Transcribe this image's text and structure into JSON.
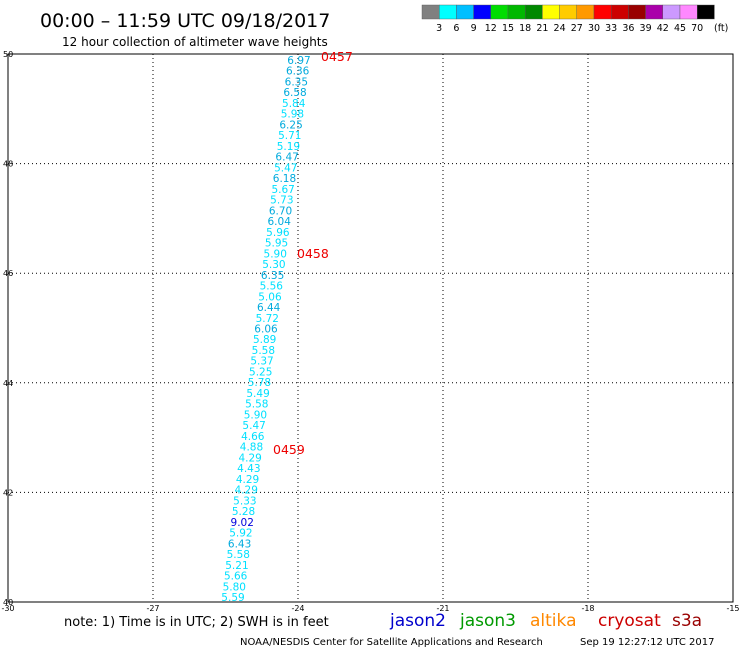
{
  "header": {
    "title": "00:00 – 11:59 UTC 09/18/2017",
    "subtitle": "12 hour collection of altimeter wave heights"
  },
  "legend": {
    "colors": [
      "#808080",
      "#00ffff",
      "#00bfff",
      "#0000ff",
      "#00dd00",
      "#00b800",
      "#008800",
      "#ffff00",
      "#ffcc00",
      "#ff9900",
      "#ff0000",
      "#cc0000",
      "#990000",
      "#aa00aa",
      "#cc99ff",
      "#ff88ff",
      "#000000"
    ],
    "labels": [
      "3",
      "6",
      "9",
      "12",
      "15",
      "18",
      "21",
      "24",
      "27",
      "30",
      "33",
      "36",
      "39",
      "42",
      "45",
      "70"
    ],
    "unit": "(ft)"
  },
  "axes": {
    "y_ticks": [
      50,
      48,
      46,
      44,
      42,
      40
    ],
    "x_ticks": [
      -30,
      -27,
      -24,
      -21,
      -18,
      -15
    ]
  },
  "track": {
    "heights": [
      "6.97",
      "6.36",
      "6.35",
      "6.58",
      "5.84",
      "5.98",
      "6.25",
      "5.71",
      "5.19",
      "6.47",
      "5.47",
      "6.18",
      "5.67",
      "5.73",
      "6.70",
      "6.04",
      "5.96",
      "5.95",
      "5.90",
      "5.30",
      "6.35",
      "5.56",
      "5.06",
      "6.44",
      "5.72",
      "6.06",
      "5.89",
      "5.58",
      "5.37",
      "5.25",
      "5.78",
      "5.49",
      "5.58",
      "5.90",
      "5.47",
      "4.66",
      "4.88",
      "4.29",
      "4.43",
      "4.29",
      "4.29",
      "5.33",
      "5.28",
      "9.02",
      "5.92",
      "6.43",
      "5.58",
      "5.21",
      "5.66",
      "5.80",
      "5.59"
    ],
    "time_labels": [
      "0457",
      "0458",
      "0459"
    ]
  },
  "footer": {
    "note": "note: 1) Time is in UTC; 2) SWH is in feet",
    "satellites": [
      {
        "name": "jason2",
        "color": "#0000cc"
      },
      {
        "name": "jason3",
        "color": "#009900"
      },
      {
        "name": "altika",
        "color": "#ff8800"
      },
      {
        "name": "cryosat",
        "color": "#cc0000"
      },
      {
        "name": "s3a",
        "color": "#990000"
      }
    ],
    "credit": "NOAA/NESDIS Center for Satellite Applications and Research",
    "timestamp": "Sep 19 12:27:12 UTC 2017"
  }
}
